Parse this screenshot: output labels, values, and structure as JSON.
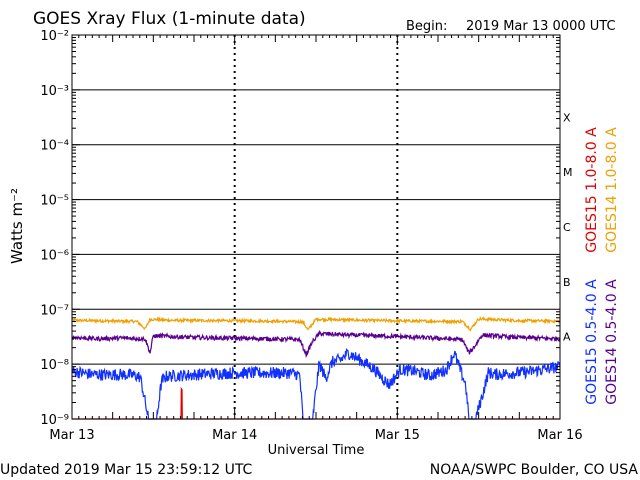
{
  "header": {
    "title": "GOES Xray Flux (1-minute data)",
    "begin_label": "Begin:",
    "begin_value": "2019 Mar 13 0000 UTC"
  },
  "footer": {
    "updated": "Updated 2019 Mar 15 23:59:12 UTC",
    "credit": "NOAA/SWPC Boulder, CO USA"
  },
  "colors": {
    "goes15_long": "#e00000",
    "goes14_long": "#f0a000",
    "goes15_short": "#1030ff",
    "goes14_short": "#5a0090",
    "axis": "#000000"
  },
  "chart_data": {
    "type": "line",
    "title": "GOES Xray Flux (1-minute data)",
    "xlabel": "Universal Time",
    "ylabel": "Watts m⁻²",
    "y_scale": "log",
    "ylim": [
      1e-09,
      0.01
    ],
    "x_range_days": [
      0,
      3
    ],
    "x_ticks": [
      {
        "day": 0,
        "label": "Mar 13"
      },
      {
        "day": 1,
        "label": "Mar 14"
      },
      {
        "day": 2,
        "label": "Mar 15"
      },
      {
        "day": 3,
        "label": "Mar 16"
      }
    ],
    "y_ticks": [
      {
        "exp": -9,
        "label": "10⁻⁹"
      },
      {
        "exp": -8,
        "label": "10⁻⁸"
      },
      {
        "exp": -7,
        "label": "10⁻⁷"
      },
      {
        "exp": -6,
        "label": "10⁻⁶"
      },
      {
        "exp": -5,
        "label": "10⁻⁵"
      },
      {
        "exp": -4,
        "label": "10⁻⁴"
      },
      {
        "exp": -3,
        "label": "10⁻³"
      },
      {
        "exp": -2,
        "label": "10⁻²"
      }
    ],
    "flare_classes": [
      {
        "label": "X",
        "exp": -4
      },
      {
        "label": "M",
        "exp": -5
      },
      {
        "label": "C",
        "exp": -6
      },
      {
        "label": "B",
        "exp": -7
      },
      {
        "label": "A",
        "exp": -8
      }
    ],
    "grid": true,
    "legend_placement": "right (vertical)",
    "series": [
      {
        "name": "GOES15 1.0-8.0 A",
        "color": "#e00000",
        "points": [
          [
            0,
            1e-09
          ],
          [
            0.67,
            1e-09
          ],
          [
            0.672,
            3.5e-09
          ],
          [
            0.676,
            3.5e-09
          ],
          [
            0.678,
            1e-09
          ],
          [
            3,
            1e-09
          ]
        ]
      },
      {
        "name": "GOES14 1.0-8.0 A",
        "color": "#f0a000",
        "points": [
          [
            0,
            6.3e-08
          ],
          [
            0.12,
            6.2e-08
          ],
          [
            0.26,
            6.1e-08
          ],
          [
            0.4,
            6e-08
          ],
          [
            0.45,
            4.4e-08
          ],
          [
            0.48,
            6.6e-08
          ],
          [
            0.6,
            6.3e-08
          ],
          [
            0.9,
            6.2e-08
          ],
          [
            1.2,
            6.1e-08
          ],
          [
            1.42,
            5.9e-08
          ],
          [
            1.45,
            4.2e-08
          ],
          [
            1.5,
            6.6e-08
          ],
          [
            1.8,
            6.3e-08
          ],
          [
            2.1,
            6.1e-08
          ],
          [
            2.4,
            6e-08
          ],
          [
            2.45,
            4.3e-08
          ],
          [
            2.5,
            6.7e-08
          ],
          [
            2.75,
            6.2e-08
          ],
          [
            3.0,
            6.1e-08
          ]
        ]
      },
      {
        "name": "GOES15 0.5-4.0 A",
        "color": "#1030ff",
        "points": [
          [
            0,
            7.5e-09
          ],
          [
            0.1,
            6.6e-09
          ],
          [
            0.2,
            6.4e-09
          ],
          [
            0.3,
            6.5e-09
          ],
          [
            0.38,
            6.3e-09
          ],
          [
            0.42,
            5.8e-09
          ],
          [
            0.47,
            1e-09
          ],
          [
            0.52,
            1e-09
          ],
          [
            0.55,
            4.8e-09
          ],
          [
            0.58,
            6e-09
          ],
          [
            0.7,
            6.3e-09
          ],
          [
            0.85,
            6.7e-09
          ],
          [
            1.0,
            6.9e-09
          ],
          [
            1.2,
            6.9e-09
          ],
          [
            1.35,
            6.9e-09
          ],
          [
            1.4,
            6.3e-09
          ],
          [
            1.42,
            1e-09
          ],
          [
            1.48,
            1e-09
          ],
          [
            1.5,
            3.5e-09
          ],
          [
            1.52,
            1e-08
          ],
          [
            1.56,
            5.5e-09
          ],
          [
            1.6,
            1.1e-08
          ],
          [
            1.65,
            1.2e-08
          ],
          [
            1.7,
            1.6e-08
          ],
          [
            1.75,
            1.3e-08
          ],
          [
            1.85,
            8.5e-09
          ],
          [
            1.95,
            4.2e-09
          ],
          [
            2.02,
            8e-09
          ],
          [
            2.1,
            7.5e-09
          ],
          [
            2.2,
            6.2e-09
          ],
          [
            2.3,
            7.8e-09
          ],
          [
            2.35,
            1.6e-08
          ],
          [
            2.38,
            9e-09
          ],
          [
            2.42,
            4.2e-09
          ],
          [
            2.44,
            1e-09
          ],
          [
            2.48,
            1e-09
          ],
          [
            2.52,
            2.5e-09
          ],
          [
            2.56,
            7e-09
          ],
          [
            2.6,
            6.5e-09
          ],
          [
            2.8,
            7.2e-09
          ],
          [
            3.0,
            9e-09
          ]
        ]
      },
      {
        "name": "GOES14 0.5-4.0 A",
        "color": "#5a0090",
        "points": [
          [
            0,
            3.1e-08
          ],
          [
            0.15,
            2.9e-08
          ],
          [
            0.3,
            3e-08
          ],
          [
            0.45,
            2.9e-08
          ],
          [
            0.48,
            1.6e-08
          ],
          [
            0.5,
            3.3e-08
          ],
          [
            0.7,
            3.1e-08
          ],
          [
            0.9,
            3e-08
          ],
          [
            1.2,
            2.9e-08
          ],
          [
            1.4,
            2.8e-08
          ],
          [
            1.44,
            1.5e-08
          ],
          [
            1.48,
            2.6e-08
          ],
          [
            1.52,
            3.6e-08
          ],
          [
            1.7,
            3.4e-08
          ],
          [
            2.0,
            3.2e-08
          ],
          [
            2.2,
            3e-08
          ],
          [
            2.4,
            2.8e-08
          ],
          [
            2.44,
            1.6e-08
          ],
          [
            2.48,
            2.2e-08
          ],
          [
            2.52,
            3.4e-08
          ],
          [
            2.7,
            3.1e-08
          ],
          [
            3.0,
            2.9e-08
          ]
        ]
      }
    ]
  }
}
